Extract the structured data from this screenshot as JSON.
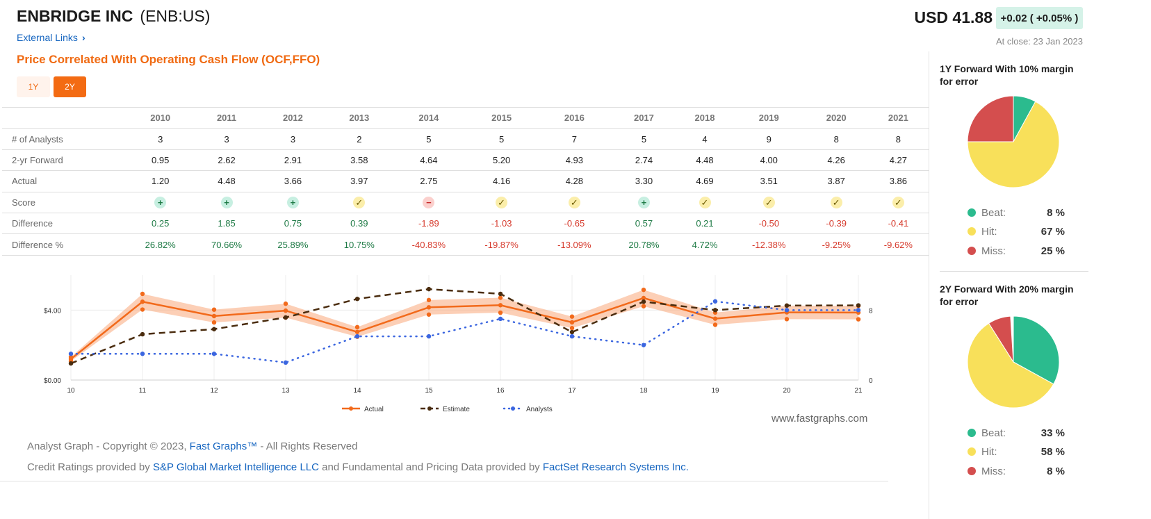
{
  "header": {
    "company": "ENBRIDGE INC",
    "ticker": "(ENB:US)",
    "external_links": "External Links",
    "chart_heading": "Price Correlated With Operating Cash Flow (OCF,FFO)",
    "range_buttons": [
      "1Y",
      "2Y"
    ],
    "price": "USD 41.88",
    "change": "+0.02 ( +0.05% )",
    "close_note": "At close: 23 Jan 2023"
  },
  "table": {
    "years": [
      "2010",
      "2011",
      "2012",
      "2013",
      "2014",
      "2015",
      "2016",
      "2017",
      "2018",
      "2019",
      "2020",
      "2021"
    ],
    "rows": {
      "analysts": {
        "label": "# of Analysts",
        "values": [
          "3",
          "3",
          "3",
          "2",
          "5",
          "5",
          "7",
          "5",
          "4",
          "9",
          "8",
          "8"
        ]
      },
      "forward": {
        "label": "2-yr Forward",
        "values": [
          "0.95",
          "2.62",
          "2.91",
          "3.58",
          "4.64",
          "5.20",
          "4.93",
          "2.74",
          "4.48",
          "4.00",
          "4.26",
          "4.27"
        ]
      },
      "actual": {
        "label": "Actual",
        "values": [
          "1.20",
          "4.48",
          "3.66",
          "3.97",
          "2.75",
          "4.16",
          "4.28",
          "3.30",
          "4.69",
          "3.51",
          "3.87",
          "3.86"
        ]
      },
      "score": {
        "label": "Score",
        "values": [
          "beat",
          "beat",
          "beat",
          "hit",
          "miss",
          "hit",
          "hit",
          "beat",
          "hit",
          "hit",
          "hit",
          "hit"
        ]
      },
      "difference": {
        "label": "Difference",
        "values": [
          "0.25",
          "1.85",
          "0.75",
          "0.39",
          "-1.89",
          "-1.03",
          "-0.65",
          "0.57",
          "0.21",
          "-0.50",
          "-0.39",
          "-0.41"
        ]
      },
      "difference_pct": {
        "label": "Difference %",
        "values": [
          "26.82%",
          "70.66%",
          "25.89%",
          "10.75%",
          "-40.83%",
          "-19.87%",
          "-13.09%",
          "20.78%",
          "4.72%",
          "-12.38%",
          "-9.25%",
          "-9.62%"
        ]
      }
    }
  },
  "chart_data": {
    "type": "line",
    "x": [
      "10",
      "11",
      "12",
      "13",
      "14",
      "15",
      "16",
      "17",
      "18",
      "19",
      "20",
      "21"
    ],
    "yticks_left": [
      "$0.00",
      "$4.00"
    ],
    "yticks_right": [
      "0",
      "8"
    ],
    "ylim_left": [
      0,
      6
    ],
    "ylim_right": [
      0,
      12
    ],
    "band_margin": 0.1,
    "series": [
      {
        "name": "Actual",
        "axis": "left",
        "color": "#f26a1b",
        "style": "solid",
        "values": [
          1.2,
          4.48,
          3.66,
          3.97,
          2.75,
          4.16,
          4.28,
          3.3,
          4.69,
          3.51,
          3.87,
          3.86
        ]
      },
      {
        "name": "Estimate",
        "axis": "left",
        "color": "#4a2c0e",
        "style": "dashed",
        "values": [
          0.95,
          2.62,
          2.91,
          3.58,
          4.64,
          5.2,
          4.93,
          2.74,
          4.48,
          4.0,
          4.26,
          4.27
        ]
      },
      {
        "name": "Analysts",
        "axis": "right",
        "color": "#3b66e0",
        "style": "dotted",
        "values": [
          3,
          3,
          3,
          2,
          5,
          5,
          7,
          5,
          4,
          9,
          8,
          8
        ]
      }
    ],
    "grid": true,
    "legend_position": "bottom"
  },
  "footer": {
    "watermark": "www.fastgraphs.com",
    "copyright_pre": "Analyst Graph - Copyright © 2023, ",
    "copyright_link": "Fast Graphs™",
    "copyright_post": " - All Rights Reserved",
    "credit_pre": "Credit Ratings provided by ",
    "credit_link1": "S&P Global Market Intelligence LLC",
    "credit_mid": " and Fundamental and Pricing Data provided by ",
    "credit_link2": "FactSet Research Systems Inc."
  },
  "side": {
    "pie1": {
      "title": "1Y Forward With 10% margin for error",
      "items": [
        {
          "label": "Beat:",
          "value": "8 %",
          "pct": 8,
          "color": "#2bbb8e"
        },
        {
          "label": "Hit:",
          "value": "67 %",
          "pct": 67,
          "color": "#f8e05a"
        },
        {
          "label": "Miss:",
          "value": "25 %",
          "pct": 25,
          "color": "#d44e4e"
        }
      ]
    },
    "pie2": {
      "title": "2Y Forward With 20% margin for error",
      "items": [
        {
          "label": "Beat:",
          "value": "33 %",
          "pct": 33,
          "color": "#2bbb8e"
        },
        {
          "label": "Hit:",
          "value": "58 %",
          "pct": 58,
          "color": "#f8e05a"
        },
        {
          "label": "Miss:",
          "value": "8 %",
          "pct": 8,
          "color": "#d44e4e"
        }
      ]
    }
  }
}
